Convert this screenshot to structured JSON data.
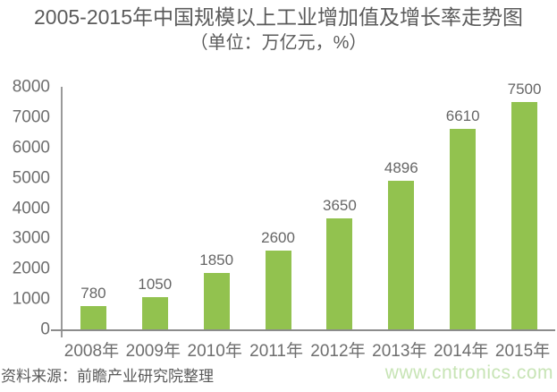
{
  "header": {
    "title": "2005-2015年中国规模以上工业增加值及增长率走势图",
    "subtitle": "（单位：万亿元，%）"
  },
  "chart_data": {
    "type": "bar",
    "title": "2005-2015年中国规模以上工业增加值及增长率走势图",
    "subtitle": "（单位：万亿元，%）",
    "categories": [
      "2008年",
      "2009年",
      "2010年",
      "2011年",
      "2012年",
      "2013年",
      "2014年",
      "2015年"
    ],
    "values": [
      780,
      1050,
      1850,
      2600,
      3650,
      4896,
      6610,
      7500
    ],
    "data_labels_shown": true,
    "xlabel": "",
    "ylabel": "",
    "ylim": [
      0,
      8000
    ],
    "yticks": [
      0,
      1000,
      2000,
      3000,
      4000,
      5000,
      6000,
      7000,
      8000
    ],
    "grid": false,
    "legend": "none",
    "bar_color": "#92c24f"
  },
  "footer": {
    "source": "资料来源：前瞻产业研究院整理",
    "watermark": "www.cntronics.com"
  },
  "colors": {
    "accent_green": "#92c24f",
    "watermark_green": "#c7e4b5",
    "text_gray": "#5b5b5b",
    "axis_gray": "#8c8c8c"
  }
}
